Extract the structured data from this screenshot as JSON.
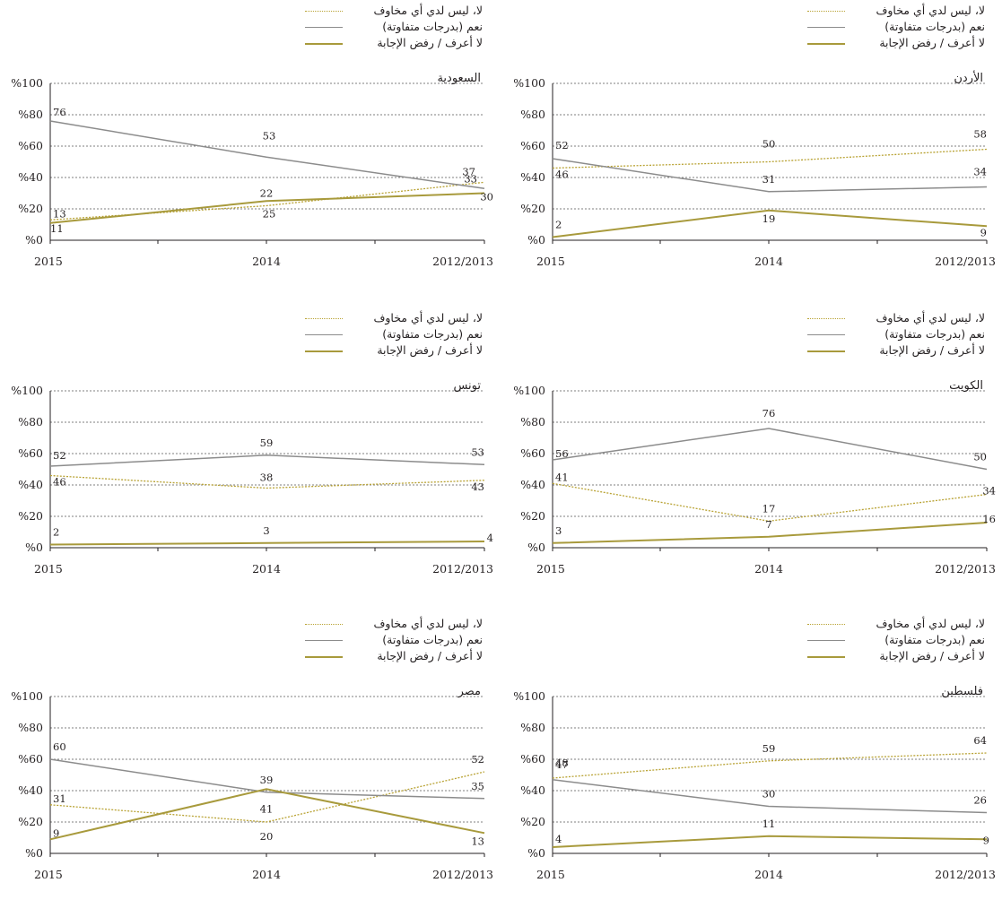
{
  "colors": {
    "no": "#b9a335",
    "yes": "#8c8c8c",
    "dk": "#a89a3c",
    "grid": "#555555",
    "axis": "#231f20"
  },
  "legend": {
    "no": "لا، ليس لدي أي مخاوف",
    "yes": "نعم (بدرجات متفاوتة)",
    "dk": "لا أعرف  /  رفض الإجابة"
  },
  "chart_data": [
    {
      "type": "line",
      "title": "السعودية",
      "x": [
        "2015",
        "2014",
        "2012/2013"
      ],
      "yticks": [
        "%0",
        "%20",
        "%40",
        "%60",
        "%80",
        "%100"
      ],
      "ylim": [
        0,
        100
      ],
      "series": [
        {
          "name": "لا، ليس لدي أي مخاوف",
          "key": "no",
          "values": [
            13,
            22,
            37
          ]
        },
        {
          "name": "نعم (بدرجات متفاوتة)",
          "key": "yes",
          "values": [
            76,
            53,
            33
          ]
        },
        {
          "name": "لا أعرف  /  رفض الإجابة",
          "key": "dk",
          "values": [
            11,
            25,
            30
          ]
        }
      ]
    },
    {
      "type": "line",
      "title": "الأردن",
      "x": [
        "2015",
        "2014",
        "2012/2013"
      ],
      "yticks": [
        "%0",
        "%20",
        "%40",
        "%60",
        "%80",
        "%100"
      ],
      "ylim": [
        0,
        100
      ],
      "series": [
        {
          "name": "لا، ليس لدي أي مخاوف",
          "key": "no",
          "values": [
            46,
            50,
            58
          ]
        },
        {
          "name": "نعم (بدرجات متفاوتة)",
          "key": "yes",
          "values": [
            52,
            31,
            34
          ]
        },
        {
          "name": "لا أعرف  /  رفض الإجابة",
          "key": "dk",
          "values": [
            2,
            19,
            9
          ]
        }
      ]
    },
    {
      "type": "line",
      "title": "تونس",
      "x": [
        "2015",
        "2014",
        "2012/2013"
      ],
      "yticks": [
        "%0",
        "%20",
        "%40",
        "%60",
        "%80",
        "%100"
      ],
      "ylim": [
        0,
        100
      ],
      "series": [
        {
          "name": "لا، ليس لدي أي مخاوف",
          "key": "no",
          "values": [
            46,
            38,
            43
          ]
        },
        {
          "name": "نعم (بدرجات متفاوتة)",
          "key": "yes",
          "values": [
            52,
            59,
            53
          ]
        },
        {
          "name": "لا أعرف  /  رفض الإجابة",
          "key": "dk",
          "values": [
            2,
            3,
            4
          ]
        }
      ]
    },
    {
      "type": "line",
      "title": "الكويت",
      "x": [
        "2015",
        "2014",
        "2012/2013"
      ],
      "yticks": [
        "%0",
        "%20",
        "%40",
        "%60",
        "%80",
        "%100"
      ],
      "ylim": [
        0,
        100
      ],
      "series": [
        {
          "name": "لا، ليس لدي أي مخاوف",
          "key": "no",
          "values": [
            41,
            17,
            34
          ]
        },
        {
          "name": "نعم (بدرجات متفاوتة)",
          "key": "yes",
          "values": [
            56,
            76,
            50
          ]
        },
        {
          "name": "لا أعرف  /  رفض الإجابة",
          "key": "dk",
          "values": [
            3,
            7,
            16
          ]
        }
      ]
    },
    {
      "type": "line",
      "title": "مصر",
      "x": [
        "2015",
        "2014",
        "2012/2013"
      ],
      "yticks": [
        "%0",
        "%20",
        "%40",
        "%60",
        "%80",
        "%100"
      ],
      "ylim": [
        0,
        100
      ],
      "series": [
        {
          "name": "لا، ليس لدي أي مخاوف",
          "key": "no",
          "values": [
            31,
            20,
            52
          ]
        },
        {
          "name": "نعم (بدرجات متفاوتة)",
          "key": "yes",
          "values": [
            60,
            39,
            35
          ]
        },
        {
          "name": "لا أعرف  /  رفض الإجابة",
          "key": "dk",
          "values": [
            9,
            41,
            13
          ]
        }
      ]
    },
    {
      "type": "line",
      "title": "فلسطين",
      "x": [
        "2015",
        "2014",
        "2012/2013"
      ],
      "yticks": [
        "%0",
        "%20",
        "%40",
        "%60",
        "%80",
        "%100"
      ],
      "ylim": [
        0,
        100
      ],
      "series": [
        {
          "name": "لا، ليس لدي أي مخاوف",
          "key": "no",
          "values": [
            48,
            59,
            64
          ]
        },
        {
          "name": "نعم (بدرجات متفاوتة)",
          "key": "yes",
          "values": [
            47,
            30,
            26
          ]
        },
        {
          "name": "لا أعرف  /  رفض الإجابة",
          "key": "dk",
          "values": [
            4,
            11,
            9
          ]
        }
      ]
    }
  ]
}
